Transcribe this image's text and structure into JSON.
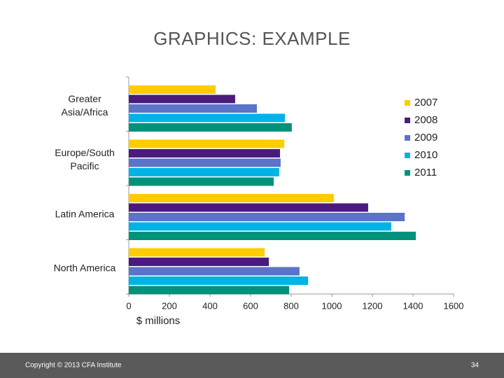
{
  "chart_data": {
    "type": "bar",
    "orientation": "horizontal",
    "title": "GRAPHICS: EXAMPLE",
    "x_label": "$ millions",
    "categories": [
      "Greater Asia/Africa",
      "Europe/South Pacific",
      "Latin America",
      "North America"
    ],
    "series": [
      {
        "name": "2007",
        "color": "#FFCC00",
        "values": [
          428,
          766,
          1010,
          669
        ]
      },
      {
        "name": "2008",
        "color": "#4B1A7F",
        "values": [
          524,
          745,
          1179,
          690
        ]
      },
      {
        "name": "2009",
        "color": "#5B73C9",
        "values": [
          631,
          748,
          1359,
          841
        ]
      },
      {
        "name": "2010",
        "color": "#00B3E6",
        "values": [
          769,
          741,
          1293,
          883
        ]
      },
      {
        "name": "2011",
        "color": "#00927A",
        "values": [
          803,
          714,
          1414,
          790
        ]
      }
    ],
    "xlim": [
      0,
      1600
    ],
    "xticks": [
      0,
      200,
      400,
      600,
      800,
      1000,
      1200,
      1400,
      1600
    ],
    "grid": false,
    "legend": "right"
  },
  "footer": {
    "copyright": "Copyright © 2013 CFA Institute",
    "page_number": "34"
  }
}
